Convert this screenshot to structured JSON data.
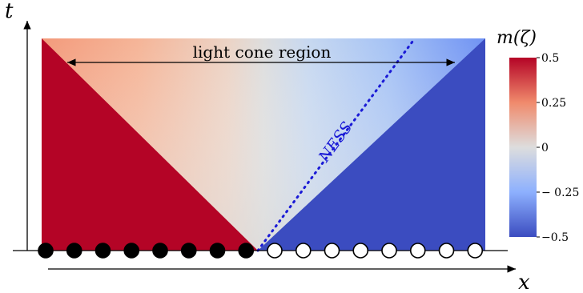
{
  "axes": {
    "t_label": "t",
    "x_label": "x"
  },
  "annotations": {
    "light_cone": "light cone region",
    "ness": "NESS"
  },
  "colorbar": {
    "title": "m(ζ)",
    "ticks": [
      {
        "value": 0.5,
        "label": "0.5"
      },
      {
        "value": 0.25,
        "label": "0.25"
      },
      {
        "value": 0,
        "label": "0"
      },
      {
        "value": -0.25,
        "label": "− 0.25"
      },
      {
        "value": -0.5,
        "label": "−0.5"
      }
    ],
    "colors": {
      "high": "#b40426",
      "mid": "#dddddd",
      "low": "#3b4cc0"
    }
  },
  "sites": {
    "filled": 8,
    "empty": 8
  },
  "colors": {
    "ness_line": "#1a1ad6",
    "axis": "#000000"
  }
}
